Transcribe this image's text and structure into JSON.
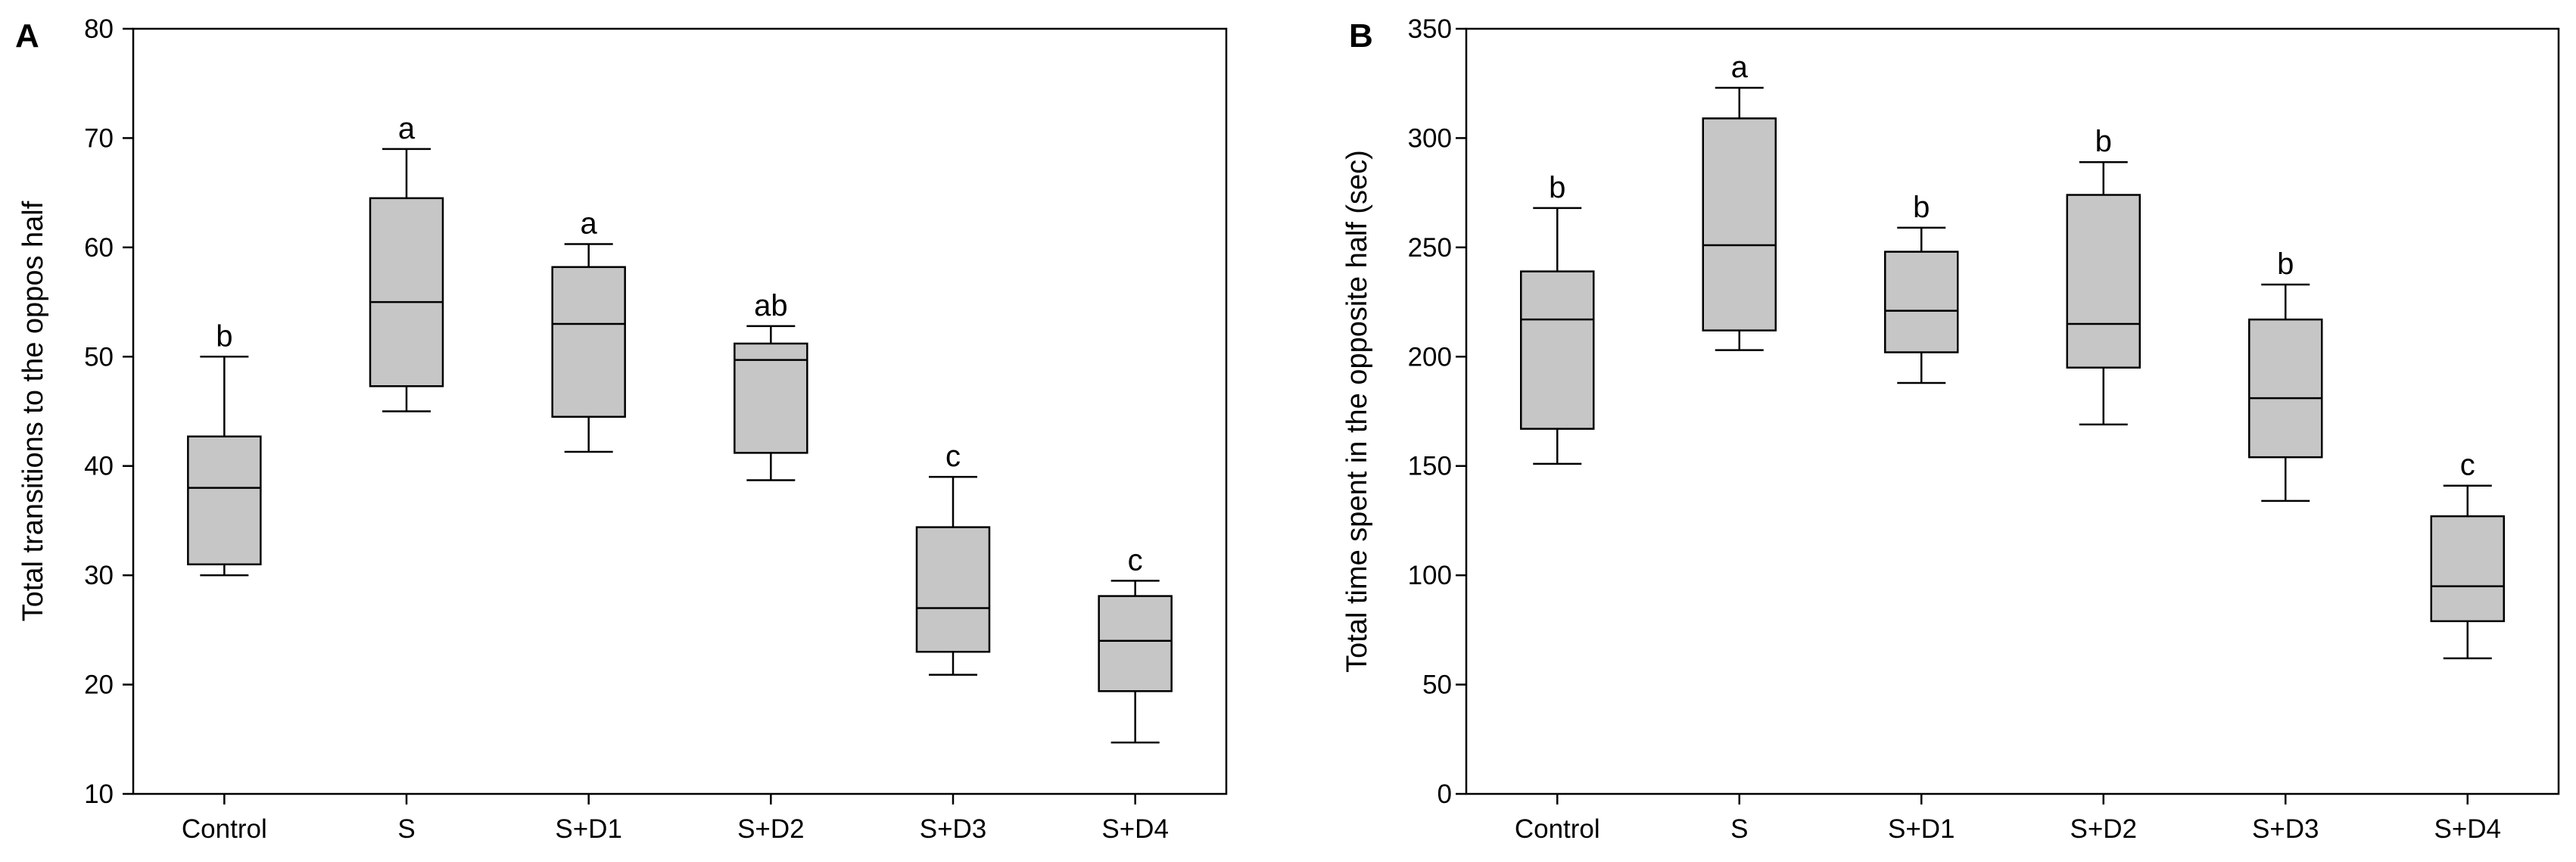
{
  "chart_data": [
    {
      "panel": "A",
      "type": "box",
      "ylabel": "Total transitions to the oppos half",
      "xlabel": "",
      "ylim": [
        10,
        80
      ],
      "yticks": [
        10,
        20,
        30,
        40,
        50,
        60,
        70,
        80
      ],
      "categories": [
        "Control",
        "S",
        "S+D1",
        "S+D2",
        "S+D3",
        "S+D4"
      ],
      "boxes": [
        {
          "min": 30,
          "q1": 31,
          "median": 38,
          "q3": 42.7,
          "max": 50,
          "label": "b"
        },
        {
          "min": 45,
          "q1": 47.3,
          "median": 55,
          "q3": 64.5,
          "max": 69,
          "label": "a"
        },
        {
          "min": 41.3,
          "q1": 44.5,
          "median": 53,
          "q3": 58.2,
          "max": 60.3,
          "label": "a"
        },
        {
          "min": 38.7,
          "q1": 41.2,
          "median": 49.7,
          "q3": 51.2,
          "max": 52.8,
          "label": "ab"
        },
        {
          "min": 20.9,
          "q1": 23,
          "median": 27,
          "q3": 34.4,
          "max": 39,
          "label": "c"
        },
        {
          "min": 14.7,
          "q1": 19.4,
          "median": 24,
          "q3": 28.1,
          "max": 29.5,
          "label": "c"
        }
      ]
    },
    {
      "panel": "B",
      "type": "box",
      "ylabel": "Total time spent in the opposite half (sec)",
      "xlabel": "",
      "ylim": [
        0,
        350
      ],
      "yticks": [
        0,
        50,
        100,
        150,
        200,
        250,
        300,
        350
      ],
      "categories": [
        "Control",
        "S",
        "S+D1",
        "S+D2",
        "S+D3",
        "S+D4"
      ],
      "boxes": [
        {
          "min": 151,
          "q1": 167,
          "median": 217,
          "q3": 239,
          "max": 268,
          "label": "b"
        },
        {
          "min": 203,
          "q1": 212,
          "median": 251,
          "q3": 309,
          "max": 323,
          "label": "a"
        },
        {
          "min": 188,
          "q1": 202,
          "median": 221,
          "q3": 248,
          "max": 259,
          "label": "b"
        },
        {
          "min": 169,
          "q1": 195,
          "median": 215,
          "q3": 274,
          "max": 289,
          "label": "b"
        },
        {
          "min": 134,
          "q1": 154,
          "median": 181,
          "q3": 217,
          "max": 233,
          "label": "b"
        },
        {
          "min": 62,
          "q1": 79,
          "median": 95,
          "q3": 127,
          "max": 141,
          "label": "c"
        }
      ]
    }
  ]
}
